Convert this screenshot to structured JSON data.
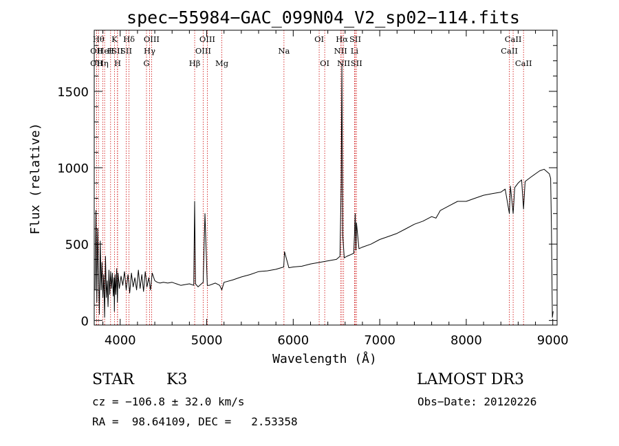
{
  "chart_data": {
    "type": "line",
    "title": "spec−55984−GAC_099N04_V2_sp02−114.fits",
    "xlabel": "Wavelength (Å)",
    "ylabel": "Flux (relative)",
    "xlim": [
      3700,
      9050
    ],
    "ylim": [
      -30,
      1900
    ],
    "xticks": [
      4000,
      5000,
      6000,
      7000,
      8000,
      9000
    ],
    "xtick_labels": [
      "4000",
      "5000",
      "6000",
      "7000",
      "8000",
      "9000"
    ],
    "yticks": [
      0,
      500,
      1000,
      1500
    ],
    "ytick_labels": [
      "0",
      "500",
      "1000",
      "1500"
    ],
    "series": [
      {
        "name": "flux",
        "x": [
          3710,
          3720,
          3730,
          3740,
          3750,
          3760,
          3770,
          3780,
          3790,
          3800,
          3810,
          3820,
          3830,
          3840,
          3850,
          3860,
          3870,
          3880,
          3890,
          3900,
          3910,
          3920,
          3930,
          3933,
          3940,
          3950,
          3960,
          3968,
          3975,
          3990,
          4010,
          4030,
          4050,
          4070,
          4090,
          4110,
          4130,
          4150,
          4170,
          4190,
          4210,
          4230,
          4250,
          4270,
          4290,
          4310,
          4330,
          4350,
          4370,
          4400,
          4430,
          4460,
          4500,
          4550,
          4600,
          4650,
          4700,
          4750,
          4800,
          4850,
          4861,
          4870,
          4900,
          4959,
          4980,
          5007,
          5030,
          5100,
          5150,
          5175,
          5200,
          5300,
          5400,
          5500,
          5600,
          5700,
          5800,
          5890,
          5900,
          5950,
          6000,
          6100,
          6200,
          6300,
          6400,
          6450,
          6500,
          6540,
          6555,
          6563,
          6572,
          6590,
          6620,
          6660,
          6700,
          6717,
          6725,
          6731,
          6760,
          6800,
          6900,
          7000,
          7100,
          7200,
          7300,
          7400,
          7500,
          7600,
          7650,
          7700,
          7800,
          7900,
          8000,
          8100,
          8200,
          8300,
          8400,
          8450,
          8498,
          8510,
          8542,
          8560,
          8600,
          8640,
          8662,
          8680,
          8750,
          8800,
          8850,
          8900,
          8940,
          8960,
          8975,
          8985,
          8995,
          9005
        ],
        "values": [
          200,
          720,
          120,
          600,
          320,
          40,
          520,
          200,
          380,
          150,
          300,
          20,
          420,
          150,
          260,
          90,
          330,
          170,
          320,
          210,
          310,
          160,
          280,
          60,
          300,
          170,
          340,
          120,
          310,
          210,
          290,
          230,
          320,
          200,
          300,
          180,
          310,
          220,
          280,
          200,
          330,
          210,
          300,
          190,
          320,
          220,
          280,
          200,
          310,
          260,
          250,
          245,
          250,
          245,
          250,
          240,
          230,
          235,
          240,
          230,
          780,
          240,
          220,
          250,
          700,
          230,
          230,
          245,
          230,
          200,
          250,
          265,
          285,
          300,
          320,
          325,
          335,
          350,
          450,
          345,
          350,
          355,
          370,
          380,
          390,
          395,
          400,
          420,
          900,
          1680,
          560,
          410,
          420,
          430,
          440,
          700,
          460,
          640,
          470,
          480,
          500,
          530,
          550,
          570,
          600,
          630,
          650,
          680,
          670,
          720,
          750,
          780,
          780,
          800,
          820,
          830,
          840,
          860,
          700,
          880,
          700,
          870,
          900,
          920,
          730,
          910,
          940,
          960,
          980,
          990,
          970,
          960,
          930,
          600,
          20,
          60
        ]
      }
    ],
    "lines": [
      {
        "wl": 3727,
        "label": "OII",
        "row": 1
      },
      {
        "wl": 3727,
        "label": "OII",
        "row": 2
      },
      {
        "wl": 3750,
        "label": "Hθ",
        "row": 0
      },
      {
        "wl": 3798,
        "label": "Hη",
        "row": 2
      },
      {
        "wl": 3820,
        "label": "HeI",
        "row": 1
      },
      {
        "wl": 3889,
        "label": "H",
        "row": 1
      },
      {
        "wl": 3934,
        "label": "K",
        "row": 0
      },
      {
        "wl": 3968,
        "label": "SII",
        "row": 1
      },
      {
        "wl": 3970,
        "label": "H",
        "row": 2
      },
      {
        "wl": 4070,
        "label": "SII",
        "row": 1
      },
      {
        "wl": 4102,
        "label": "Hδ",
        "row": 0
      },
      {
        "wl": 4304,
        "label": "G",
        "row": 2
      },
      {
        "wl": 4340,
        "label": "Hγ",
        "row": 1
      },
      {
        "wl": 4363,
        "label": "OIII",
        "row": 0
      },
      {
        "wl": 4861,
        "label": "Hβ",
        "row": 2
      },
      {
        "wl": 4959,
        "label": "OIII",
        "row": 1
      },
      {
        "wl": 5007,
        "label": "OIII",
        "row": 0
      },
      {
        "wl": 5175,
        "label": "Mg",
        "row": 2
      },
      {
        "wl": 5893,
        "label": "Na",
        "row": 1
      },
      {
        "wl": 6300,
        "label": "OI",
        "row": 0
      },
      {
        "wl": 6364,
        "label": "OI",
        "row": 2
      },
      {
        "wl": 6548,
        "label": "NII",
        "row": 1
      },
      {
        "wl": 6563,
        "label": "Hα",
        "row": 0
      },
      {
        "wl": 6583,
        "label": "NII",
        "row": 2
      },
      {
        "wl": 6708,
        "label": "Li",
        "row": 1
      },
      {
        "wl": 6717,
        "label": "SII",
        "row": 0
      },
      {
        "wl": 6731,
        "label": "SII",
        "row": 2
      },
      {
        "wl": 8498,
        "label": "CaII",
        "row": 1
      },
      {
        "wl": 8542,
        "label": "CaII",
        "row": 0
      },
      {
        "wl": 8662,
        "label": "CaII",
        "row": 2
      }
    ]
  },
  "info": {
    "class": "STAR",
    "subclass": "K3",
    "survey": "LAMOST DR3",
    "cz": "cz = −106.8 ± 32.0 km/s",
    "obs_date": "Obs−Date: 20120226",
    "radec": "RA =  98.64109, DEC =   2.53358"
  },
  "colors": {
    "line_marker": "#cc0000",
    "axis": "#000000",
    "spectrum": "#000000"
  }
}
